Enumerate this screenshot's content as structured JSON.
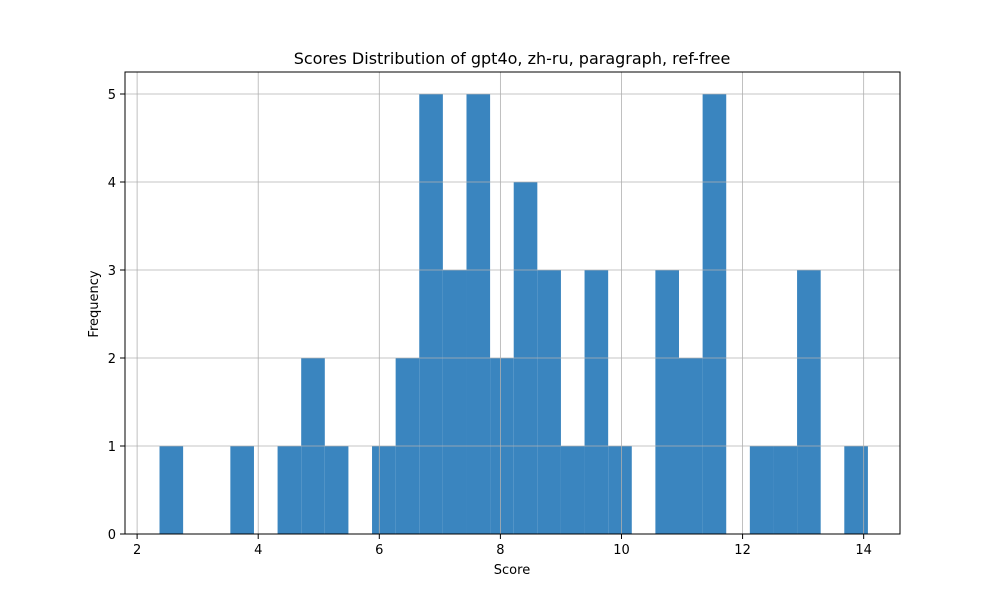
{
  "chart_data": {
    "type": "bar",
    "title": "Scores Distribution of gpt4o, zh-ru, paragraph, ref-free",
    "xlabel": "Score",
    "ylabel": "Frequency",
    "xlim": [
      1.8,
      14.6
    ],
    "ylim": [
      0,
      5.25
    ],
    "xticks": [
      2,
      4,
      6,
      8,
      10,
      12,
      14
    ],
    "yticks": [
      0,
      1,
      2,
      3,
      4,
      5
    ],
    "grid": true,
    "bar_color": "#3a85bf",
    "bins": [
      {
        "x0": 2.37,
        "x1": 2.76,
        "value": 1
      },
      {
        "x0": 2.76,
        "x1": 3.15,
        "value": 0
      },
      {
        "x0": 3.15,
        "x1": 3.54,
        "value": 0
      },
      {
        "x0": 3.54,
        "x1": 3.93,
        "value": 1
      },
      {
        "x0": 3.93,
        "x1": 4.32,
        "value": 0
      },
      {
        "x0": 4.32,
        "x1": 4.71,
        "value": 1
      },
      {
        "x0": 4.71,
        "x1": 5.1,
        "value": 2
      },
      {
        "x0": 5.1,
        "x1": 5.49,
        "value": 1
      },
      {
        "x0": 5.49,
        "x1": 5.88,
        "value": 0
      },
      {
        "x0": 5.88,
        "x1": 6.27,
        "value": 1
      },
      {
        "x0": 6.27,
        "x1": 6.66,
        "value": 2
      },
      {
        "x0": 6.66,
        "x1": 7.05,
        "value": 5
      },
      {
        "x0": 7.05,
        "x1": 7.44,
        "value": 3
      },
      {
        "x0": 7.44,
        "x1": 7.83,
        "value": 5
      },
      {
        "x0": 7.83,
        "x1": 8.22,
        "value": 2
      },
      {
        "x0": 8.22,
        "x1": 8.61,
        "value": 4
      },
      {
        "x0": 8.61,
        "x1": 9.0,
        "value": 3
      },
      {
        "x0": 9.0,
        "x1": 9.39,
        "value": 1
      },
      {
        "x0": 9.39,
        "x1": 9.78,
        "value": 3
      },
      {
        "x0": 9.78,
        "x1": 10.17,
        "value": 1
      },
      {
        "x0": 10.17,
        "x1": 10.56,
        "value": 0
      },
      {
        "x0": 10.56,
        "x1": 10.95,
        "value": 3
      },
      {
        "x0": 10.95,
        "x1": 11.34,
        "value": 2
      },
      {
        "x0": 11.34,
        "x1": 11.73,
        "value": 5
      },
      {
        "x0": 11.73,
        "x1": 12.12,
        "value": 0
      },
      {
        "x0": 12.12,
        "x1": 12.51,
        "value": 1
      },
      {
        "x0": 12.51,
        "x1": 12.9,
        "value": 1
      },
      {
        "x0": 12.9,
        "x1": 13.29,
        "value": 3
      },
      {
        "x0": 13.29,
        "x1": 13.68,
        "value": 0
      },
      {
        "x0": 13.68,
        "x1": 14.07,
        "value": 1
      }
    ]
  }
}
